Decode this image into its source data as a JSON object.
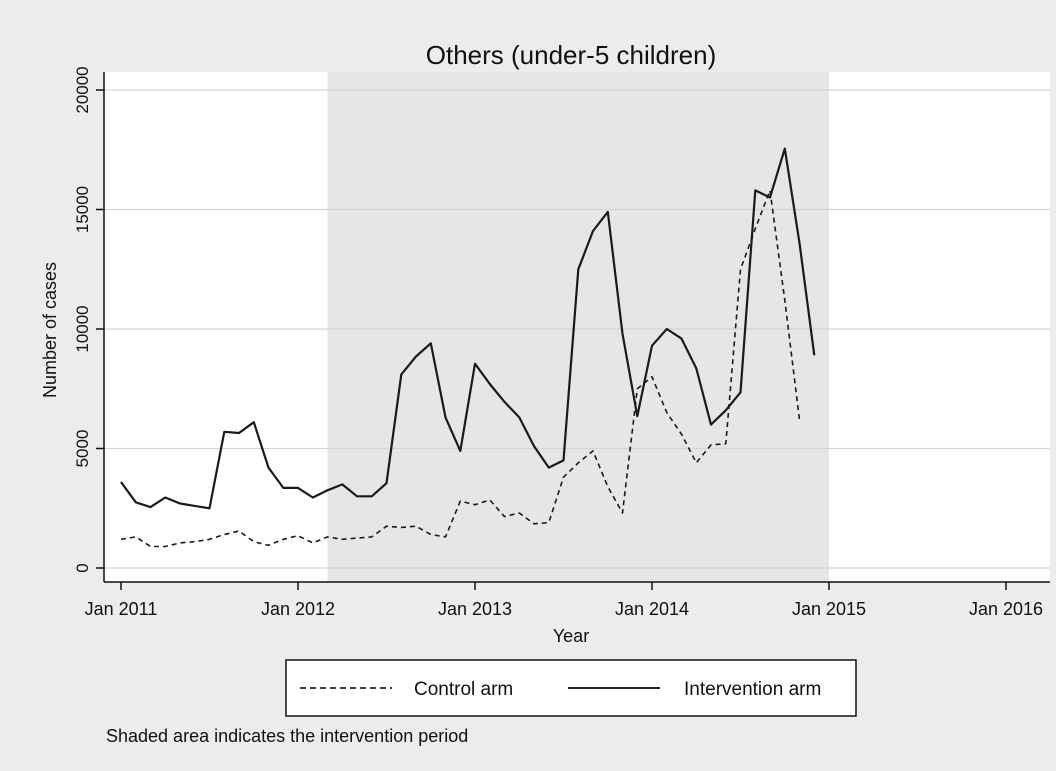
{
  "chart_data": {
    "type": "line",
    "title": "Others (under-5 children)",
    "xlabel": "Year",
    "ylabel": "Number of cases",
    "xlim": [
      "2011-01",
      "2016-01"
    ],
    "ylim": [
      0,
      20000
    ],
    "x_ticks": [
      "Jan 2011",
      "Jan 2012",
      "Jan 2013",
      "Jan 2014",
      "Jan 2015",
      "Jan 2016"
    ],
    "y_ticks": [
      0,
      5000,
      10000,
      15000,
      20000
    ],
    "y_tick_labels": [
      "0",
      "5000",
      "10000",
      "15000",
      "20000"
    ],
    "grid": true,
    "shaded_period": {
      "start": "2012-03",
      "end": "2015-01"
    },
    "legend_placement": "bottom",
    "note": "Shaded area indicates the intervention period",
    "x": [
      "2011-01",
      "2011-02",
      "2011-03",
      "2011-04",
      "2011-05",
      "2011-06",
      "2011-07",
      "2011-08",
      "2011-09",
      "2011-10",
      "2011-11",
      "2011-12",
      "2012-01",
      "2012-02",
      "2012-03",
      "2012-04",
      "2012-05",
      "2012-06",
      "2012-07",
      "2012-08",
      "2012-09",
      "2012-10",
      "2012-11",
      "2012-12",
      "2013-01",
      "2013-02",
      "2013-03",
      "2013-04",
      "2013-05",
      "2013-06",
      "2013-07",
      "2013-08",
      "2013-09",
      "2013-10",
      "2013-11",
      "2013-12",
      "2014-01",
      "2014-02",
      "2014-03",
      "2014-04",
      "2014-05",
      "2014-06",
      "2014-07",
      "2014-08",
      "2014-09",
      "2014-10",
      "2014-11",
      "2014-12"
    ],
    "series": [
      {
        "name": "Control arm",
        "style": "dashed",
        "values": [
          1200,
          1300,
          900,
          900,
          1050,
          1100,
          1200,
          1400,
          1550,
          1100,
          950,
          1200,
          1350,
          1050,
          1300,
          1200,
          1250,
          1300,
          1750,
          1700,
          1750,
          1400,
          1300,
          2800,
          2650,
          2850,
          2150,
          2300,
          1850,
          1900,
          3800,
          4400,
          4900,
          3400,
          2300,
          7500,
          8000,
          6500,
          5600,
          4400,
          5150,
          5200,
          12500,
          14200,
          15800,
          11200,
          6200,
          null
        ]
      },
      {
        "name": "Intervention arm",
        "style": "solid",
        "values": [
          3600,
          2750,
          2550,
          2950,
          2700,
          2600,
          2500,
          5700,
          5650,
          6100,
          4200,
          3350,
          3350,
          2950,
          3250,
          3500,
          3000,
          3000,
          3550,
          8100,
          8850,
          9400,
          6300,
          4900,
          8550,
          7700,
          6950,
          6300,
          5100,
          4200,
          4500,
          12500,
          14100,
          14900,
          9800,
          6350,
          9300,
          10000,
          9600,
          8350,
          6000,
          6600,
          7350,
          15800,
          15500,
          17550,
          13600,
          8900
        ]
      }
    ]
  }
}
